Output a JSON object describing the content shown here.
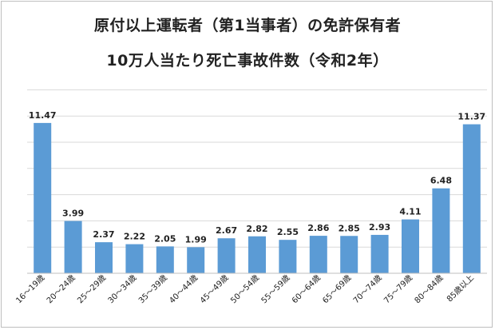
{
  "title_line1": "原付以上運転者（第1当事者）の免許保有者",
  "title_line2": "10万人当たり死亡事故件数（令和2年）",
  "chart_data": {
    "type": "bar",
    "title": "原付以上運転者（第1当事者）の免許保有者 10万人当たり死亡事故件数（令和2年）",
    "categories": [
      "16～19歳",
      "20～24歳",
      "25～29歳",
      "30～34歳",
      "35～39歳",
      "40～44歳",
      "45～49歳",
      "50～54歳",
      "55～59歳",
      "60～64歳",
      "65～69歳",
      "70～74歳",
      "75～79歳",
      "80～84歳",
      "85歳以上"
    ],
    "values": [
      11.47,
      3.99,
      2.37,
      2.22,
      2.05,
      1.99,
      2.67,
      2.82,
      2.55,
      2.86,
      2.85,
      2.93,
      4.11,
      6.48,
      11.37
    ],
    "value_labels": [
      "11.47",
      "3.99",
      "2.37",
      "2.22",
      "2.05",
      "1.99",
      "2.67",
      "2.82",
      "2.55",
      "2.86",
      "2.85",
      "2.93",
      "4.11",
      "6.48",
      "11.37"
    ],
    "xlabel": "",
    "ylabel": "",
    "ylim": [
      0,
      14
    ],
    "grid": true,
    "legend": "none",
    "bar_color": "#5b9bd5",
    "grid_color": "#d9d9d9"
  }
}
